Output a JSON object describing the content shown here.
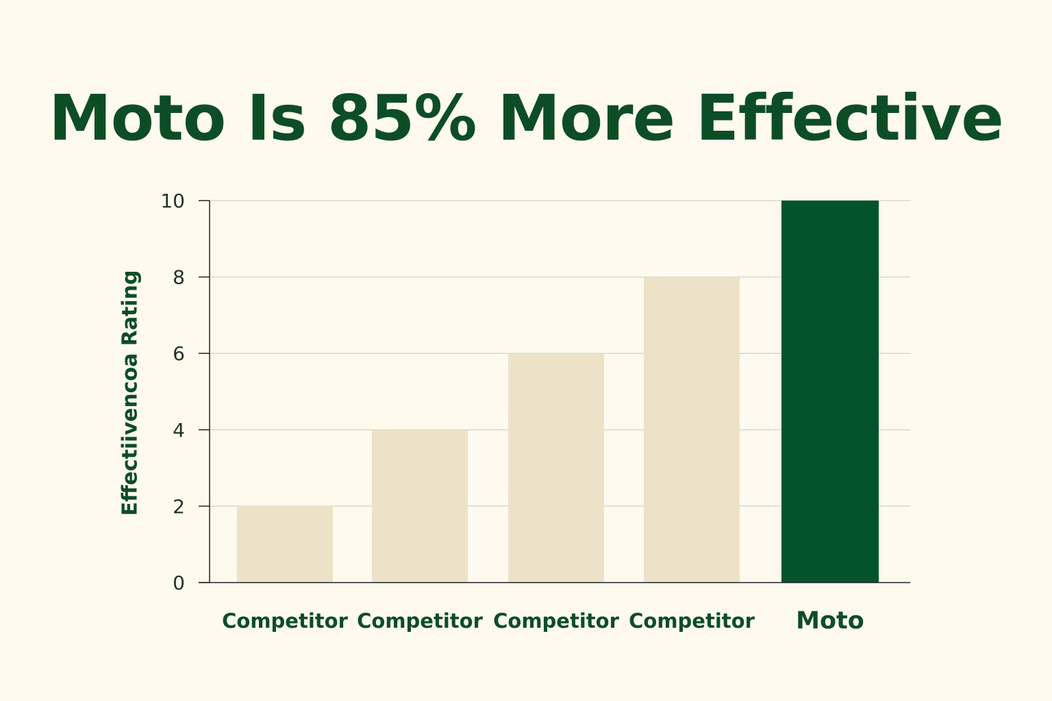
{
  "chart_data": {
    "type": "bar",
    "title": "Moto Is 85% More Effective",
    "xlabel": "",
    "ylabel": "Effectiivencoa Rating",
    "categories": [
      "Competitor",
      "Competitor",
      "Competitor",
      "Competitor",
      "Moto"
    ],
    "values": [
      2,
      4,
      6,
      8,
      10
    ],
    "ylim": [
      0,
      10
    ],
    "yticks": [
      0,
      2,
      4,
      6,
      8,
      10
    ],
    "grid": true,
    "legend": "none",
    "highlight_index": 4,
    "colors": {
      "bar": "#ede2c8",
      "highlight": "#03532c",
      "text": "#0d4d26",
      "grid": "#d6d9cf",
      "axis": "#222222",
      "background": "#fefaee"
    }
  }
}
